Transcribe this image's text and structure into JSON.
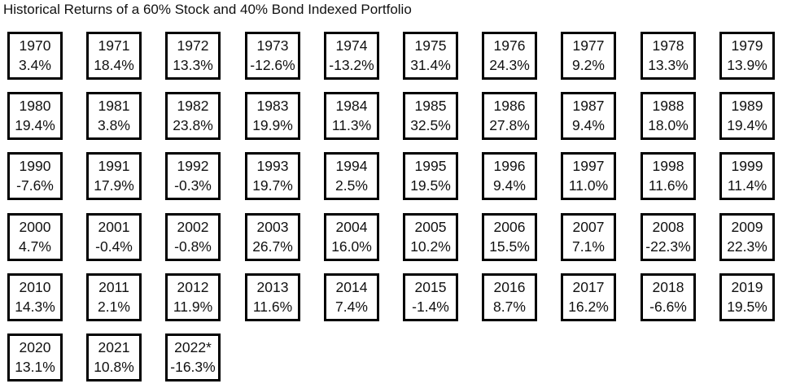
{
  "title": "Historical Returns of a 60% Stock and 40% Bond Indexed Portfolio",
  "chart_data": {
    "type": "table",
    "title": "Historical Returns of a 60% Stock and 40% Bond Indexed Portfolio",
    "rows": [
      [
        {
          "year": "1970",
          "return": "3.4%"
        },
        {
          "year": "1971",
          "return": "18.4%"
        },
        {
          "year": "1972",
          "return": "13.3%"
        },
        {
          "year": "1973",
          "return": "-12.6%"
        },
        {
          "year": "1974",
          "return": "-13.2%"
        },
        {
          "year": "1975",
          "return": "31.4%"
        },
        {
          "year": "1976",
          "return": "24.3%"
        },
        {
          "year": "1977",
          "return": "9.2%"
        },
        {
          "year": "1978",
          "return": "13.3%"
        },
        {
          "year": "1979",
          "return": "13.9%"
        }
      ],
      [
        {
          "year": "1980",
          "return": "19.4%"
        },
        {
          "year": "1981",
          "return": "3.8%"
        },
        {
          "year": "1982",
          "return": "23.8%"
        },
        {
          "year": "1983",
          "return": "19.9%"
        },
        {
          "year": "1984",
          "return": "11.3%"
        },
        {
          "year": "1985",
          "return": "32.5%"
        },
        {
          "year": "1986",
          "return": "27.8%"
        },
        {
          "year": "1987",
          "return": "9.4%"
        },
        {
          "year": "1988",
          "return": "18.0%"
        },
        {
          "year": "1989",
          "return": "19.4%"
        }
      ],
      [
        {
          "year": "1990",
          "return": "-7.6%"
        },
        {
          "year": "1991",
          "return": "17.9%"
        },
        {
          "year": "1992",
          "return": "-0.3%"
        },
        {
          "year": "1993",
          "return": "19.7%"
        },
        {
          "year": "1994",
          "return": "2.5%"
        },
        {
          "year": "1995",
          "return": "19.5%"
        },
        {
          "year": "1996",
          "return": "9.4%"
        },
        {
          "year": "1997",
          "return": "11.0%"
        },
        {
          "year": "1998",
          "return": "11.6%"
        },
        {
          "year": "1999",
          "return": "11.4%"
        }
      ],
      [
        {
          "year": "2000",
          "return": "4.7%"
        },
        {
          "year": "2001",
          "return": "-0.4%"
        },
        {
          "year": "2002",
          "return": "-0.8%"
        },
        {
          "year": "2003",
          "return": "26.7%"
        },
        {
          "year": "2004",
          "return": "16.0%"
        },
        {
          "year": "2005",
          "return": "10.2%"
        },
        {
          "year": "2006",
          "return": "15.5%"
        },
        {
          "year": "2007",
          "return": "7.1%"
        },
        {
          "year": "2008",
          "return": "-22.3%"
        },
        {
          "year": "2009",
          "return": "22.3%"
        }
      ],
      [
        {
          "year": "2010",
          "return": "14.3%"
        },
        {
          "year": "2011",
          "return": "2.1%"
        },
        {
          "year": "2012",
          "return": "11.9%"
        },
        {
          "year": "2013",
          "return": "11.6%"
        },
        {
          "year": "2014",
          "return": "7.4%"
        },
        {
          "year": "2015",
          "return": "-1.4%"
        },
        {
          "year": "2016",
          "return": "8.7%"
        },
        {
          "year": "2017",
          "return": "16.2%"
        },
        {
          "year": "2018",
          "return": "-6.6%"
        },
        {
          "year": "2019",
          "return": "19.5%"
        }
      ],
      [
        {
          "year": "2020",
          "return": "13.1%"
        },
        {
          "year": "2021",
          "return": "10.8%"
        },
        {
          "year": "2022*",
          "return": "-16.3%"
        }
      ]
    ]
  }
}
